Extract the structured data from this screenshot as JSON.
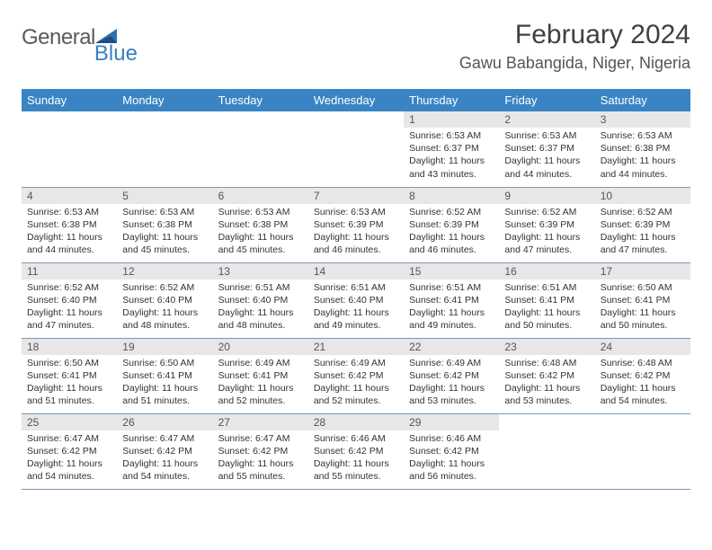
{
  "brand": {
    "part1": "General",
    "part2": "Blue"
  },
  "title": "February 2024",
  "location": "Gawu Babangida, Niger, Nigeria",
  "colors": {
    "header_bg": "#3a84c3",
    "header_text": "#ffffff",
    "daynum_bg": "#e7e7e7",
    "row_border": "#7a98b3",
    "brand_gray": "#5a5a5a",
    "brand_blue": "#3a7fc4"
  },
  "weekdays": [
    "Sunday",
    "Monday",
    "Tuesday",
    "Wednesday",
    "Thursday",
    "Friday",
    "Saturday"
  ],
  "layout": {
    "columns": 7,
    "first_weekday_index": 4,
    "weeks": 5
  },
  "days": [
    {
      "n": 1,
      "sunrise": "6:53 AM",
      "sunset": "6:37 PM",
      "daylight": "11 hours and 43 minutes."
    },
    {
      "n": 2,
      "sunrise": "6:53 AM",
      "sunset": "6:37 PM",
      "daylight": "11 hours and 44 minutes."
    },
    {
      "n": 3,
      "sunrise": "6:53 AM",
      "sunset": "6:38 PM",
      "daylight": "11 hours and 44 minutes."
    },
    {
      "n": 4,
      "sunrise": "6:53 AM",
      "sunset": "6:38 PM",
      "daylight": "11 hours and 44 minutes."
    },
    {
      "n": 5,
      "sunrise": "6:53 AM",
      "sunset": "6:38 PM",
      "daylight": "11 hours and 45 minutes."
    },
    {
      "n": 6,
      "sunrise": "6:53 AM",
      "sunset": "6:38 PM",
      "daylight": "11 hours and 45 minutes."
    },
    {
      "n": 7,
      "sunrise": "6:53 AM",
      "sunset": "6:39 PM",
      "daylight": "11 hours and 46 minutes."
    },
    {
      "n": 8,
      "sunrise": "6:52 AM",
      "sunset": "6:39 PM",
      "daylight": "11 hours and 46 minutes."
    },
    {
      "n": 9,
      "sunrise": "6:52 AM",
      "sunset": "6:39 PM",
      "daylight": "11 hours and 47 minutes."
    },
    {
      "n": 10,
      "sunrise": "6:52 AM",
      "sunset": "6:39 PM",
      "daylight": "11 hours and 47 minutes."
    },
    {
      "n": 11,
      "sunrise": "6:52 AM",
      "sunset": "6:40 PM",
      "daylight": "11 hours and 47 minutes."
    },
    {
      "n": 12,
      "sunrise": "6:52 AM",
      "sunset": "6:40 PM",
      "daylight": "11 hours and 48 minutes."
    },
    {
      "n": 13,
      "sunrise": "6:51 AM",
      "sunset": "6:40 PM",
      "daylight": "11 hours and 48 minutes."
    },
    {
      "n": 14,
      "sunrise": "6:51 AM",
      "sunset": "6:40 PM",
      "daylight": "11 hours and 49 minutes."
    },
    {
      "n": 15,
      "sunrise": "6:51 AM",
      "sunset": "6:41 PM",
      "daylight": "11 hours and 49 minutes."
    },
    {
      "n": 16,
      "sunrise": "6:51 AM",
      "sunset": "6:41 PM",
      "daylight": "11 hours and 50 minutes."
    },
    {
      "n": 17,
      "sunrise": "6:50 AM",
      "sunset": "6:41 PM",
      "daylight": "11 hours and 50 minutes."
    },
    {
      "n": 18,
      "sunrise": "6:50 AM",
      "sunset": "6:41 PM",
      "daylight": "11 hours and 51 minutes."
    },
    {
      "n": 19,
      "sunrise": "6:50 AM",
      "sunset": "6:41 PM",
      "daylight": "11 hours and 51 minutes."
    },
    {
      "n": 20,
      "sunrise": "6:49 AM",
      "sunset": "6:41 PM",
      "daylight": "11 hours and 52 minutes."
    },
    {
      "n": 21,
      "sunrise": "6:49 AM",
      "sunset": "6:42 PM",
      "daylight": "11 hours and 52 minutes."
    },
    {
      "n": 22,
      "sunrise": "6:49 AM",
      "sunset": "6:42 PM",
      "daylight": "11 hours and 53 minutes."
    },
    {
      "n": 23,
      "sunrise": "6:48 AM",
      "sunset": "6:42 PM",
      "daylight": "11 hours and 53 minutes."
    },
    {
      "n": 24,
      "sunrise": "6:48 AM",
      "sunset": "6:42 PM",
      "daylight": "11 hours and 54 minutes."
    },
    {
      "n": 25,
      "sunrise": "6:47 AM",
      "sunset": "6:42 PM",
      "daylight": "11 hours and 54 minutes."
    },
    {
      "n": 26,
      "sunrise": "6:47 AM",
      "sunset": "6:42 PM",
      "daylight": "11 hours and 54 minutes."
    },
    {
      "n": 27,
      "sunrise": "6:47 AM",
      "sunset": "6:42 PM",
      "daylight": "11 hours and 55 minutes."
    },
    {
      "n": 28,
      "sunrise": "6:46 AM",
      "sunset": "6:42 PM",
      "daylight": "11 hours and 55 minutes."
    },
    {
      "n": 29,
      "sunrise": "6:46 AM",
      "sunset": "6:42 PM",
      "daylight": "11 hours and 56 minutes."
    }
  ],
  "labels": {
    "sunrise": "Sunrise:",
    "sunset": "Sunset:",
    "daylight": "Daylight:"
  }
}
